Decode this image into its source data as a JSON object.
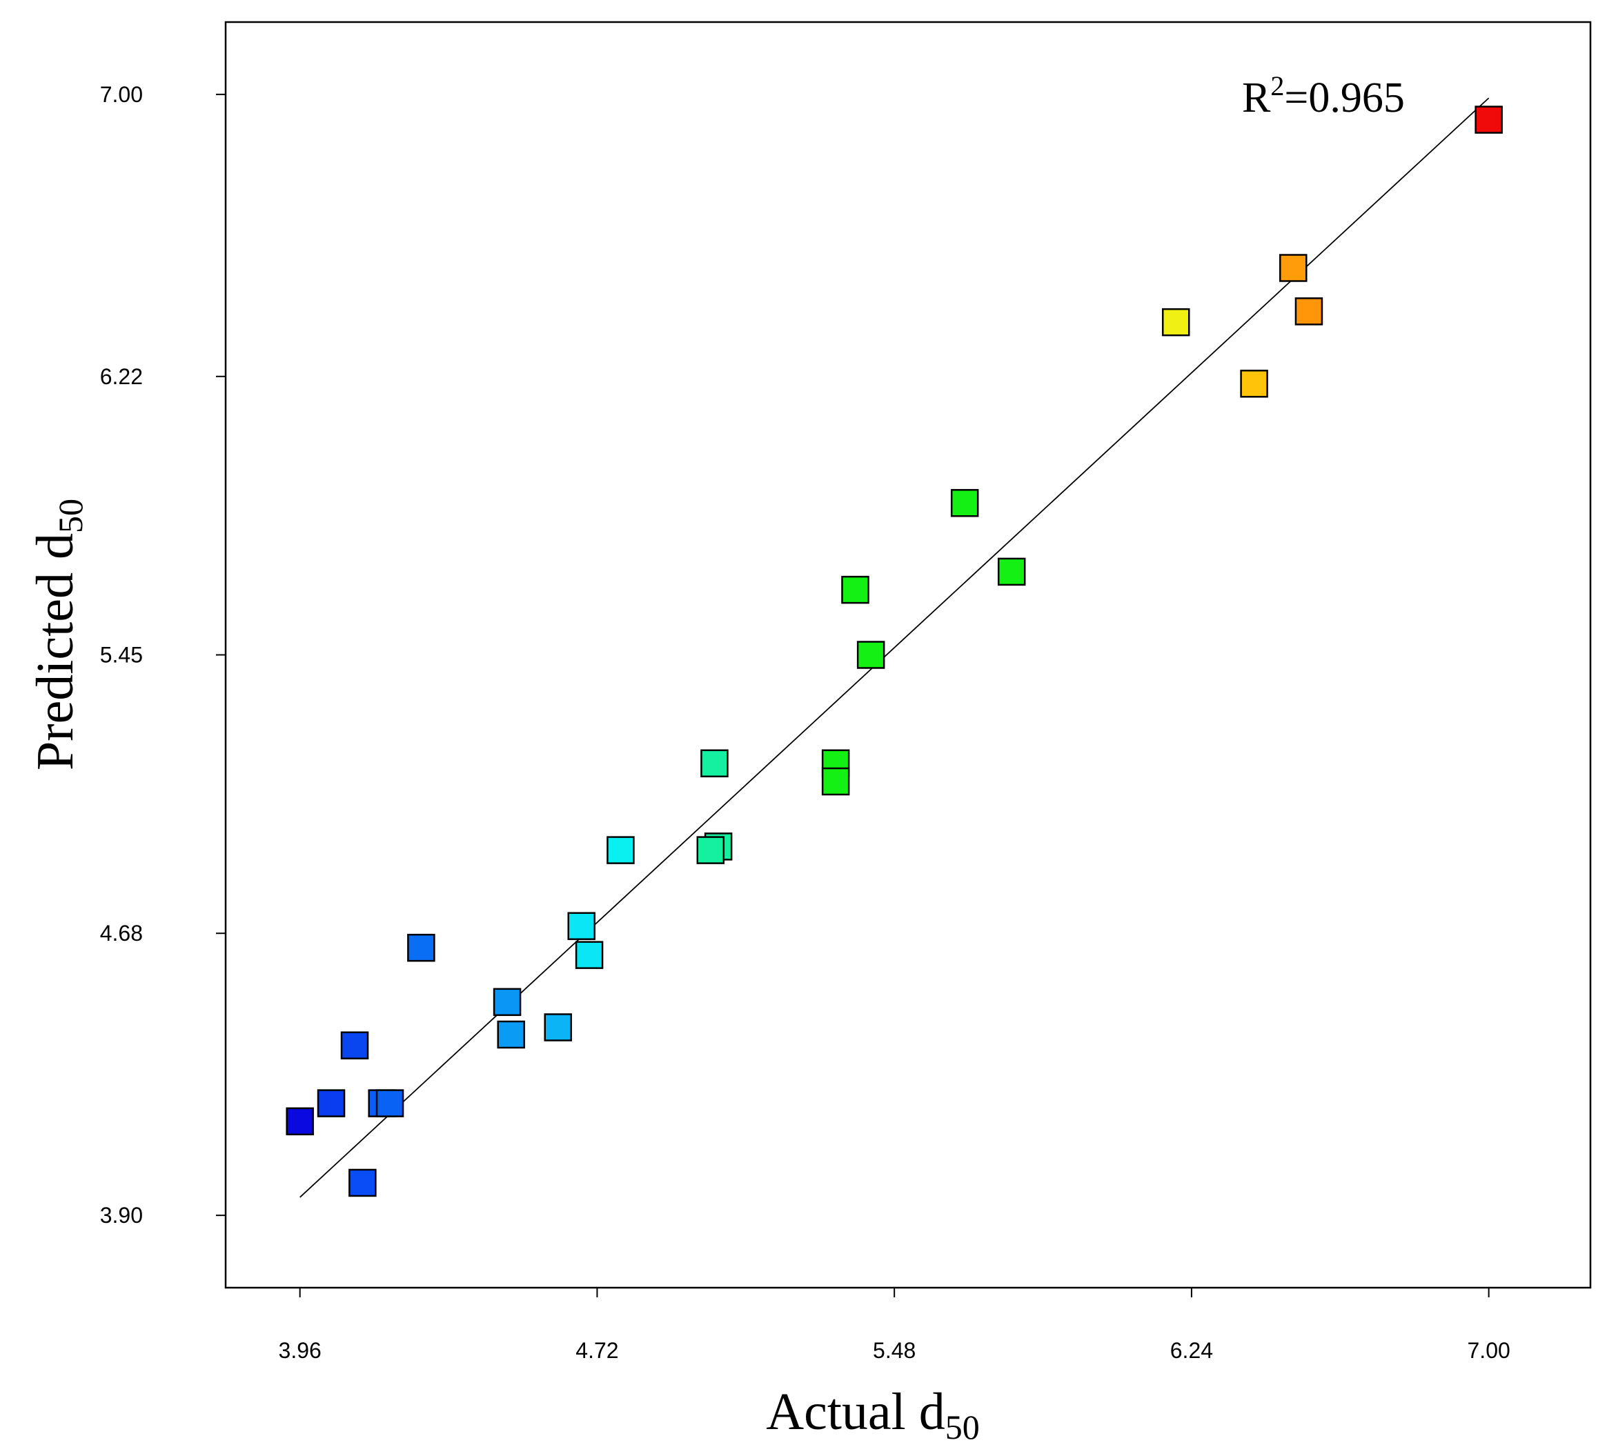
{
  "chart_data": {
    "type": "scatter",
    "title": "",
    "xlabel": "Actual d",
    "xlabel_sub": "50",
    "ylabel": "Predicted d",
    "ylabel_sub": "50",
    "xlim": [
      3.77,
      7.26
    ],
    "ylim": [
      3.7,
      7.2
    ],
    "x_ticks": [
      3.96,
      4.72,
      5.48,
      6.24,
      7.0
    ],
    "x_tick_labels": [
      "3.96",
      "4.72",
      "5.48",
      "6.24",
      "7.00"
    ],
    "y_ticks": [
      3.9,
      4.68,
      5.45,
      6.22,
      7.0
    ],
    "y_tick_labels": [
      "3.90",
      "4.68",
      "5.45",
      "6.22",
      "7.00"
    ],
    "annotation": {
      "prefix": "R",
      "sup": "2",
      "suffix": "=0.965",
      "position": "top-right"
    },
    "fit_line": {
      "from": [
        3.96,
        3.95
      ],
      "to": [
        7.0,
        6.99
      ]
    },
    "points": [
      {
        "x": 3.96,
        "y": 4.16,
        "color": "#0a0ae0"
      },
      {
        "x": 4.12,
        "y": 3.99,
        "color": "#0a4cf5"
      },
      {
        "x": 4.1,
        "y": 4.37,
        "color": "#0a46f0"
      },
      {
        "x": 4.04,
        "y": 4.21,
        "color": "#0a3cf0"
      },
      {
        "x": 4.17,
        "y": 4.21,
        "color": "#0a5ef5"
      },
      {
        "x": 4.19,
        "y": 4.21,
        "color": "#0a62f5"
      },
      {
        "x": 4.27,
        "y": 4.64,
        "color": "#0a6ef5"
      },
      {
        "x": 4.49,
        "y": 4.49,
        "color": "#0a96f5"
      },
      {
        "x": 4.5,
        "y": 4.4,
        "color": "#0a9cf5"
      },
      {
        "x": 4.62,
        "y": 4.42,
        "color": "#0ab4f5"
      },
      {
        "x": 4.68,
        "y": 4.7,
        "color": "#0ae6f5"
      },
      {
        "x": 4.7,
        "y": 4.62,
        "color": "#0ae6f5"
      },
      {
        "x": 4.78,
        "y": 4.91,
        "color": "#0af0f0"
      },
      {
        "x": 5.02,
        "y": 5.15,
        "color": "#14f0a0"
      },
      {
        "x": 5.03,
        "y": 4.92,
        "color": "#14f0a0"
      },
      {
        "x": 5.01,
        "y": 4.91,
        "color": "#14f0a0"
      },
      {
        "x": 5.33,
        "y": 5.15,
        "color": "#14f014"
      },
      {
        "x": 5.33,
        "y": 5.1,
        "color": "#14f014"
      },
      {
        "x": 5.38,
        "y": 5.63,
        "color": "#14f014"
      },
      {
        "x": 5.42,
        "y": 5.45,
        "color": "#14f014"
      },
      {
        "x": 5.66,
        "y": 5.87,
        "color": "#14f014"
      },
      {
        "x": 5.78,
        "y": 5.68,
        "color": "#14f014"
      },
      {
        "x": 6.2,
        "y": 6.37,
        "color": "#f0f014"
      },
      {
        "x": 6.4,
        "y": 6.2,
        "color": "#ffc40a"
      },
      {
        "x": 6.5,
        "y": 6.52,
        "color": "#ff9c0a"
      },
      {
        "x": 6.54,
        "y": 6.4,
        "color": "#ff960a"
      },
      {
        "x": 7.0,
        "y": 6.93,
        "color": "#f00a0a"
      }
    ]
  }
}
